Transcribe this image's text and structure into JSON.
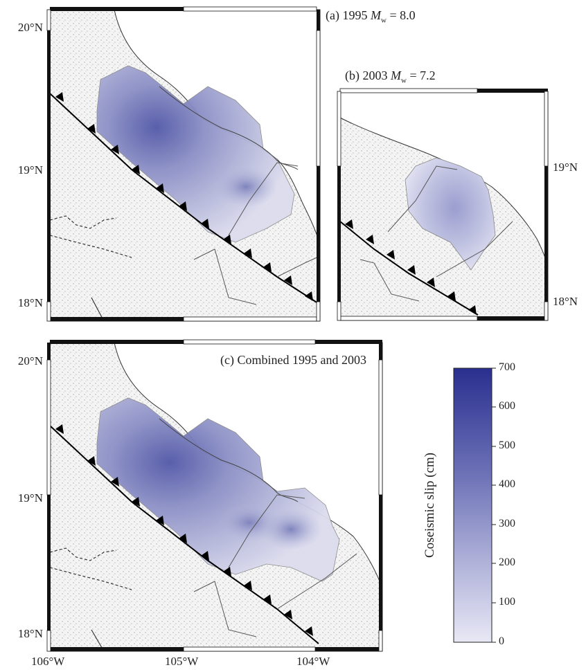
{
  "panels": {
    "a": {
      "title_prefix": "(a) 1995 ",
      "title_var": "M",
      "title_sub": "w",
      "title_suffix": " = 8.0"
    },
    "b": {
      "title_prefix": "(b) 2003 ",
      "title_var": "M",
      "title_sub": "w",
      "title_suffix": " = 7.2"
    },
    "c": {
      "title": "(c) Combined 1995 and 2003"
    }
  },
  "lat_labels": {
    "a": [
      "20°N",
      "19°N",
      "18°N"
    ],
    "b": [
      "19°N",
      "18°N"
    ],
    "c": [
      "20°N",
      "19°N",
      "18°N"
    ]
  },
  "lon_labels": [
    "106°W",
    "105°W",
    "104°W"
  ],
  "colorbar": {
    "title": "Coseismic slip (cm)",
    "ticks": [
      "700",
      "600",
      "500",
      "400",
      "300",
      "200",
      "100",
      "0"
    ],
    "color_min": "#e8e8f5",
    "color_max": "#2a2f8f"
  }
}
